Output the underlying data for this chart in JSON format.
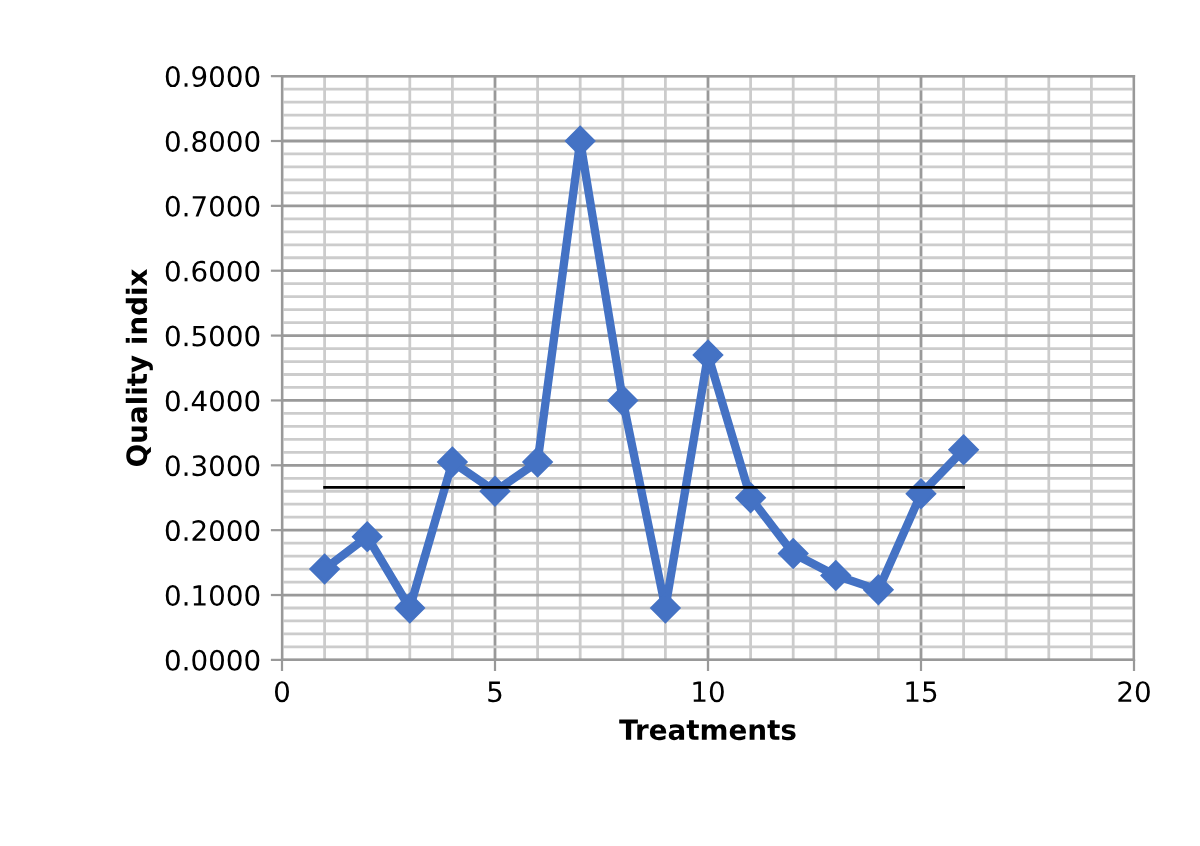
{
  "chart_data": {
    "type": "line",
    "xlabel": "Treatments",
    "ylabel": "Quality indix",
    "x": [
      1,
      2,
      3,
      4,
      5,
      6,
      7,
      8,
      9,
      10,
      11,
      12,
      13,
      14,
      15,
      16
    ],
    "series": [
      {
        "color": "#4472c4",
        "values": [
          0.14,
          0.19,
          0.08,
          0.305,
          0.26,
          0.305,
          0.8,
          0.4,
          0.08,
          0.47,
          0.25,
          0.164,
          0.13,
          0.108,
          0.256,
          0.324
        ],
        "marker": "diamond"
      },
      {
        "type": "line",
        "color": "#000000",
        "x": [
          1,
          16
        ],
        "values": [
          0.266,
          0.266
        ],
        "marker": "none"
      }
    ],
    "xlim": [
      0,
      20
    ],
    "xticks": [
      0,
      5,
      10,
      15,
      20
    ],
    "ylim": [
      0,
      0.9
    ],
    "yticks": [
      {
        "value": 0,
        "label": "0.0000"
      },
      {
        "value": 0.1,
        "label": "0.1000"
      },
      {
        "value": 0.2,
        "label": "0.2000"
      },
      {
        "value": 0.3,
        "label": "0.3000"
      },
      {
        "value": 0.4,
        "label": "0.4000"
      },
      {
        "value": 0.5,
        "label": "0.5000"
      },
      {
        "value": 0.6,
        "label": "0.6000"
      },
      {
        "value": 0.7,
        "label": "0.7000"
      },
      {
        "value": 0.8,
        "label": "0.8000"
      },
      {
        "value": 0.9,
        "label": "0.9000"
      }
    ],
    "grid": true,
    "legend": false
  }
}
